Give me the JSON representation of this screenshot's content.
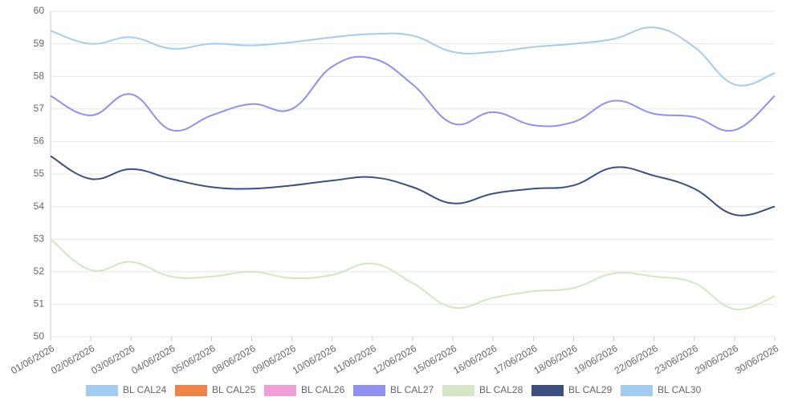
{
  "chart_data": {
    "type": "line",
    "categories": [
      "01/06/2026",
      "02/06/2026",
      "03/06/2026",
      "04/06/2026",
      "05/06/2026",
      "08/06/2026",
      "09/06/2026",
      "10/06/2026",
      "11/06/2026",
      "12/06/2026",
      "15/06/2026",
      "16/06/2026",
      "17/06/2026",
      "18/06/2026",
      "19/06/2026",
      "22/06/2026",
      "23/06/2026",
      "29/06/2026",
      "30/06/2026"
    ],
    "series": [
      {
        "name": "BL CAL24",
        "color": "#a3cdf0",
        "values": [
          null,
          null,
          null,
          null,
          null,
          null,
          null,
          null,
          null,
          null,
          null,
          null,
          null,
          null,
          null,
          null,
          null,
          null,
          null
        ]
      },
      {
        "name": "BL CAL25",
        "color": "#f0834a",
        "values": [
          null,
          null,
          null,
          null,
          null,
          null,
          null,
          null,
          null,
          null,
          null,
          null,
          null,
          null,
          null,
          null,
          null,
          null,
          null
        ]
      },
      {
        "name": "BL CAL26",
        "color": "#f09fd8",
        "values": [
          null,
          null,
          null,
          null,
          null,
          null,
          null,
          null,
          null,
          null,
          null,
          null,
          null,
          null,
          null,
          null,
          null,
          null,
          null
        ]
      },
      {
        "name": "BL CAL27",
        "color": "#9090ee",
        "values": [
          57.4,
          56.8,
          57.45,
          56.35,
          56.8,
          57.15,
          57.0,
          58.3,
          58.55,
          57.75,
          56.55,
          56.9,
          56.5,
          56.6,
          57.25,
          56.85,
          56.75,
          56.35,
          57.4
        ]
      },
      {
        "name": "BL CAL28",
        "color": "#d4e6c3",
        "values": [
          53.0,
          52.05,
          52.3,
          51.85,
          51.85,
          52.0,
          51.8,
          51.9,
          52.25,
          51.65,
          50.9,
          51.2,
          51.4,
          51.5,
          51.95,
          51.85,
          51.65,
          50.85,
          51.25
        ]
      },
      {
        "name": "BL CAL29",
        "color": "#3b4f80",
        "values": [
          55.55,
          54.85,
          55.15,
          54.85,
          54.6,
          54.55,
          54.65,
          54.8,
          54.9,
          54.6,
          54.1,
          54.4,
          54.55,
          54.65,
          55.2,
          54.95,
          54.55,
          53.75,
          54.0
        ]
      },
      {
        "name": "BL CAL30",
        "color": "#a3cdf0",
        "values": [
          59.4,
          59.0,
          59.2,
          58.85,
          59.0,
          58.95,
          59.05,
          59.2,
          59.3,
          59.25,
          58.75,
          58.75,
          58.9,
          59.0,
          59.15,
          59.5,
          58.9,
          57.75,
          58.1
        ]
      }
    ],
    "ylim": [
      50,
      60
    ],
    "yticks": [
      50,
      51,
      52,
      53,
      54,
      55,
      56,
      57,
      58,
      59,
      60
    ],
    "grid": true,
    "legend": "bottom"
  }
}
